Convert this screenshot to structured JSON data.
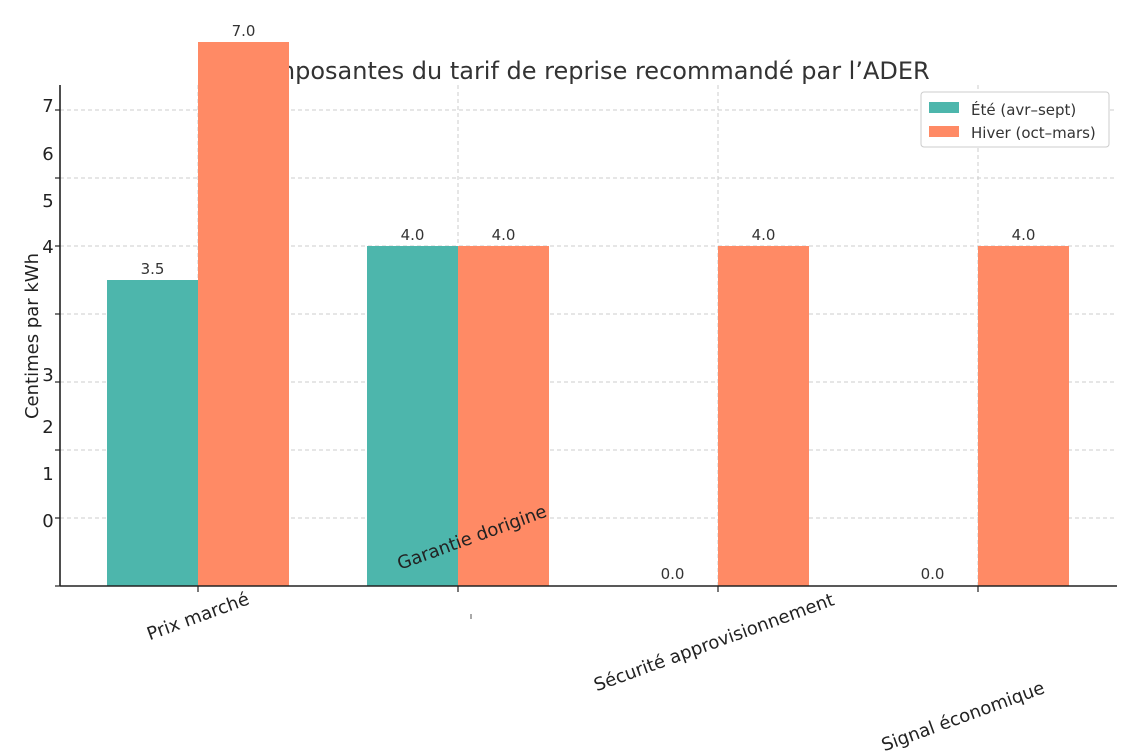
{
  "chart_data": {
    "type": "bar",
    "title": "Composantes du tarif de reprise recommandé par l’ADER",
    "xlabel": "",
    "ylabel": "Centimes par kWh",
    "categories": [
      "Prix marché",
      "Garantie dorigine",
      "Sécurité approvisionnement",
      "Signal économique"
    ],
    "series": [
      {
        "name": "Été (avr–sept)",
        "values": [
          3.5,
          4.0,
          0.0,
          0.0
        ],
        "color": "#4DB6AC"
      },
      {
        "name": "Hiver (oct–mars)",
        "values": [
          7.0,
          4.0,
          4.0,
          4.0
        ],
        "color": "#FF8A65"
      }
    ],
    "ylim": [
      -1,
      7.4
    ],
    "yticks": [
      "0",
      "1",
      "2",
      "3",
      "4",
      "5",
      "6",
      "7"
    ],
    "grid": true,
    "legend_position": "top-right"
  }
}
